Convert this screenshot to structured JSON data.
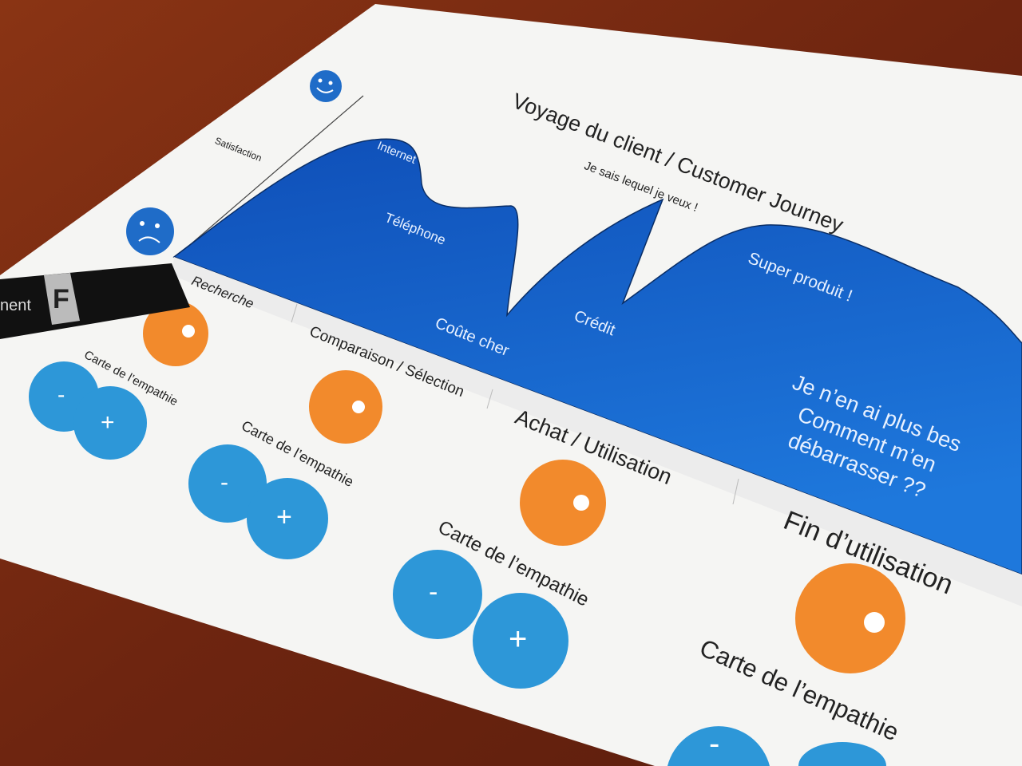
{
  "title": "Voyage du client / Customer Journey",
  "y_axis_label": "Satisfaction",
  "curve_labels": {
    "internet": "Internet",
    "telephone": "Téléphone",
    "coute_cher": "Coûte cher",
    "credit": "Crédit",
    "je_sais": "Je sais lequel je veux !",
    "super_produit": "Super produit !",
    "plus_besoin_1": "Je n’en ai plus bes",
    "plus_besoin_2": "Comment m’en",
    "plus_besoin_3": "débarrasser ??"
  },
  "stages": [
    "Recherche",
    "Comparaison / Sélection",
    "Achat / Utilisation",
    "Fin d’utilisation"
  ],
  "empathy_card_label": "Carte de l’empathie",
  "minus": "-",
  "plus": "+",
  "marker_text": "F",
  "marker_side_text": "nent",
  "colors": {
    "wood": "#7a2a12",
    "paper": "#f4f4f4",
    "chart_blue": "#1560c8",
    "orange": "#f28a2c",
    "sticker_blue": "#2d97d8"
  },
  "icons": [
    "happy-face-icon",
    "sad-face-icon",
    "marker-pen"
  ]
}
